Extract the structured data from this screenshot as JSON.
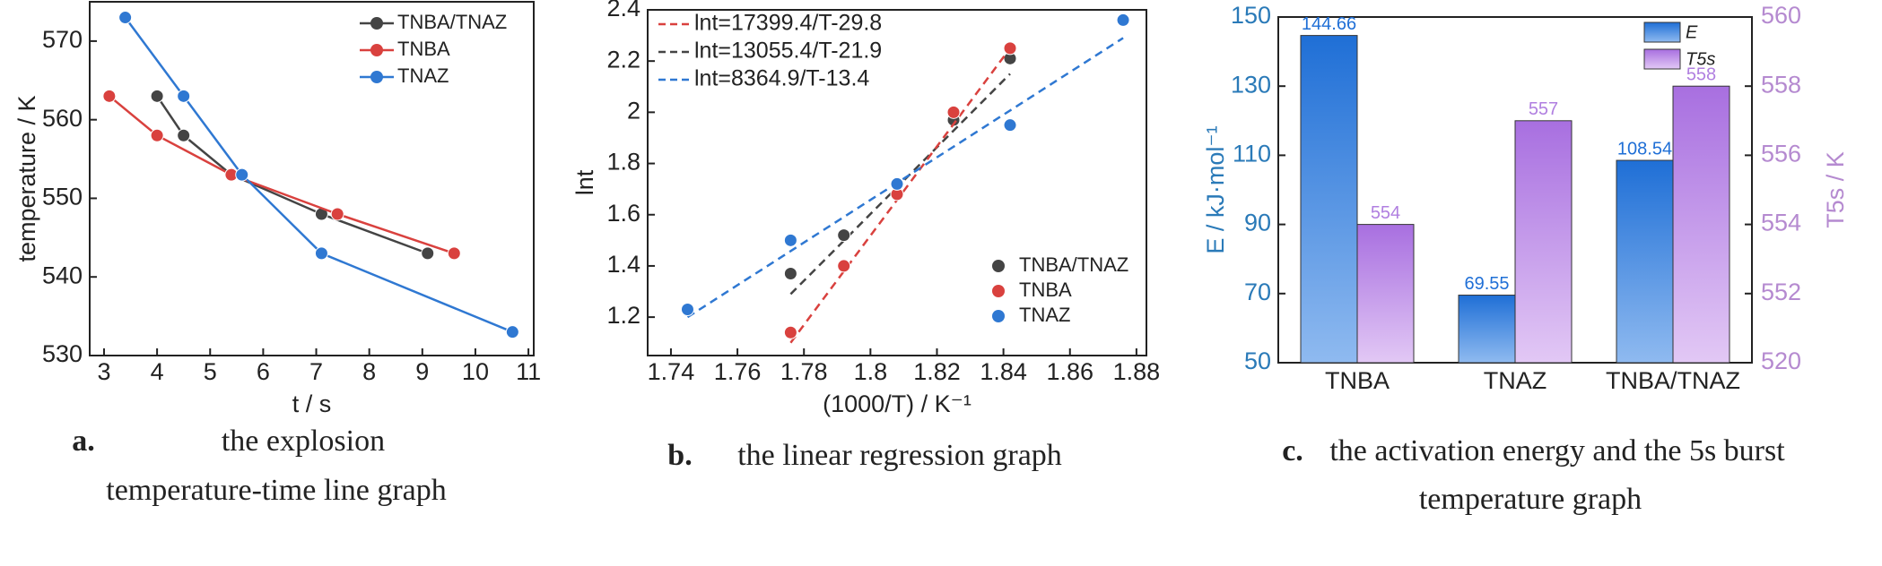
{
  "chart_data": [
    {
      "type": "line",
      "caption_label": "a.",
      "caption": [
        "the explosion",
        "temperature-time line graph"
      ],
      "xlabel": "t / s",
      "ylabel": "temperature / K",
      "xlim": [
        2.73,
        11.1
      ],
      "xticks": [
        3,
        4,
        5,
        6,
        7,
        8,
        9,
        10,
        11
      ],
      "ylim": [
        530,
        575
      ],
      "yticks": [
        530,
        540,
        550,
        560,
        570
      ],
      "legend": "top-right",
      "series": [
        {
          "name": "TNBA/TNAZ",
          "color": "#444444",
          "x": [
            4.0,
            4.5,
            5.4,
            7.1,
            9.1
          ],
          "values": [
            563,
            558,
            553,
            548,
            543
          ]
        },
        {
          "name": "TNBA",
          "color": "#d9413e",
          "x": [
            3.1,
            4.0,
            5.4,
            7.4,
            9.6
          ],
          "values": [
            563,
            558,
            553,
            548,
            543
          ]
        },
        {
          "name": "TNAZ",
          "color": "#2f78d2",
          "x": [
            3.4,
            4.5,
            5.6,
            7.1,
            10.7
          ],
          "values": [
            573,
            563,
            553,
            543,
            533
          ]
        }
      ]
    },
    {
      "type": "scatter",
      "caption_label": "b.",
      "caption": [
        "the linear regression graph"
      ],
      "xlabel": "(1000/T) / K⁻¹",
      "ylabel": "lnt",
      "xlim": [
        1.733,
        1.883
      ],
      "xticks": [
        1.74,
        1.76,
        1.78,
        1.8,
        1.82,
        1.84,
        1.86,
        1.88
      ],
      "ylim": [
        1.05,
        2.4
      ],
      "yticks": [
        1.2,
        1.4,
        1.6,
        1.8,
        2.0,
        2.2,
        2.4
      ],
      "legend": "bottom-right",
      "series": [
        {
          "name": "TNBA/TNAZ",
          "color": "#444444",
          "x": [
            1.776,
            1.792,
            1.808,
            1.825,
            1.842
          ],
          "values": [
            1.37,
            1.52,
            1.68,
            1.97,
            2.21
          ],
          "fit_label": "lnt=13055.4/T-21.9",
          "fit": {
            "x": [
              1.776,
              1.842
            ],
            "y": [
              1.29,
              2.15
            ]
          }
        },
        {
          "name": "TNBA",
          "color": "#d9413e",
          "x": [
            1.776,
            1.792,
            1.808,
            1.825,
            1.842
          ],
          "values": [
            1.14,
            1.4,
            1.68,
            2.0,
            2.25
          ],
          "fit_label": "lnt=17399.4/T-29.8",
          "fit": {
            "x": [
              1.776,
              1.842
            ],
            "y": [
              1.1,
              2.25
            ]
          }
        },
        {
          "name": "TNAZ",
          "color": "#2f78d2",
          "x": [
            1.745,
            1.776,
            1.808,
            1.842,
            1.876
          ],
          "values": [
            1.23,
            1.5,
            1.72,
            1.95,
            2.36
          ],
          "fit_label": "lnt=8364.9/T-13.4",
          "fit": {
            "x": [
              1.745,
              1.876
            ],
            "y": [
              1.2,
              2.29
            ]
          }
        }
      ]
    },
    {
      "type": "bar",
      "caption_label": "c.",
      "caption": [
        "the activation energy and the 5s burst",
        "temperature graph"
      ],
      "ylabel": "E / kJ·mol⁻¹",
      "y2label": "T5s / K",
      "categories": [
        "TNBA",
        "TNAZ",
        "TNBA/TNAZ"
      ],
      "ylim": [
        50,
        150
      ],
      "yticks": [
        50,
        70,
        90,
        110,
        130,
        150
      ],
      "y2lim": [
        550,
        560
      ],
      "y2ticks": [
        {
          "value": 550,
          "label": "520"
        },
        552,
        554,
        556,
        558,
        560
      ],
      "legend": "top-right",
      "series": [
        {
          "name": "E",
          "color": "#1f6fd6",
          "values": [
            144.66,
            69.55,
            108.54
          ]
        },
        {
          "name": "T5s",
          "color": "#b07fe0",
          "axis": "y2",
          "values": [
            554,
            557,
            558
          ]
        }
      ]
    }
  ]
}
